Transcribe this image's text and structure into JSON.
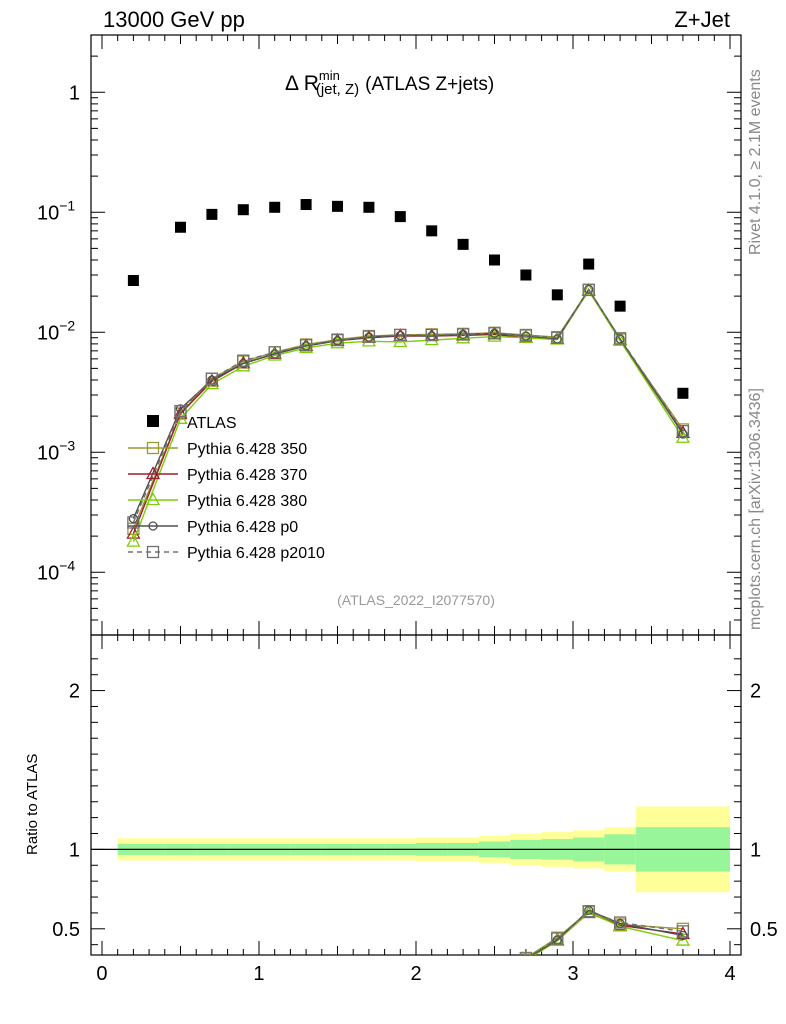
{
  "header": {
    "left": "13000 GeV pp",
    "right": "Z+Jet"
  },
  "side_labels": {
    "upper": "Rivet 4.1.0, ≥ 2.1M events",
    "lower": "mcplots.cern.ch [arXiv:1306.3436]"
  },
  "chart_data": {
    "type": "scatter",
    "title_parts": {
      "main": "Δ R",
      "sup": "min",
      "sub": "(jet, Z)",
      "tail": "(ATLAS Z+jets)"
    },
    "analysis_label": "(ATLAS_2022_I2077570)",
    "xlim": [
      -0.07,
      4.07
    ],
    "ylim_main": [
      3e-05,
      3
    ],
    "ylim_ratio": [
      0.335,
      2.35
    ],
    "x_ticks": [
      "0",
      "1",
      "2",
      "3",
      "4"
    ],
    "y_ticks_main": [
      {
        "base": "1",
        "exp": ""
      },
      {
        "base": "10",
        "exp": "−1"
      },
      {
        "base": "10",
        "exp": "−2"
      },
      {
        "base": "10",
        "exp": "−3"
      },
      {
        "base": "10",
        "exp": "−4"
      }
    ],
    "y_ticks_ratio": [
      "2",
      "1",
      "0.5"
    ],
    "ratio_ylabel": "Ratio to ATLAS",
    "x": [
      0.2,
      0.5,
      0.7,
      0.9,
      1.1,
      1.3,
      1.5,
      1.7,
      1.9,
      2.1,
      2.3,
      2.5,
      2.7,
      2.9,
      3.1,
      3.3,
      3.7
    ],
    "bin_edges": [
      0.1,
      0.4,
      0.6,
      0.8,
      1.0,
      1.2,
      1.4,
      1.6,
      1.8,
      2.0,
      2.2,
      2.4,
      2.6,
      2.8,
      3.0,
      3.2,
      3.4,
      4.0
    ],
    "data": {
      "name": "ATLAS",
      "values": [
        0.027,
        0.075,
        0.096,
        0.105,
        0.11,
        0.116,
        0.112,
        0.11,
        0.092,
        0.07,
        0.054,
        0.04,
        0.03,
        0.0205,
        0.037,
        0.0165,
        0.0031
      ],
      "band_inner": [
        0.035,
        0.035,
        0.035,
        0.035,
        0.035,
        0.035,
        0.035,
        0.035,
        0.035,
        0.04,
        0.04,
        0.05,
        0.06,
        0.065,
        0.075,
        0.095,
        0.14
      ],
      "band_outer": [
        0.07,
        0.07,
        0.07,
        0.07,
        0.07,
        0.07,
        0.07,
        0.07,
        0.07,
        0.075,
        0.075,
        0.085,
        0.1,
        0.11,
        0.12,
        0.14,
        0.27
      ]
    },
    "series": [
      {
        "name": "Pythia 6.428 350",
        "color": "#9a9a2e",
        "marker": "square-open",
        "dash": false,
        "values": [
          0.00023,
          0.0021,
          0.0041,
          0.0057,
          0.0068,
          0.0079,
          0.0087,
          0.0093,
          0.0095,
          0.0096,
          0.0097,
          0.0099,
          0.0095,
          0.0091,
          0.0225,
          0.0087,
          0.00155
        ]
      },
      {
        "name": "Pythia 6.428 370",
        "color": "#a01a2e",
        "marker": "triangle-open",
        "dash": false,
        "values": [
          0.00021,
          0.0021,
          0.0039,
          0.0055,
          0.0066,
          0.0077,
          0.0085,
          0.009,
          0.0093,
          0.0093,
          0.0094,
          0.0096,
          0.009,
          0.0088,
          0.0222,
          0.0086,
          0.00145
        ]
      },
      {
        "name": "Pythia 6.428 380",
        "color": "#7ccd0a",
        "marker": "triangle-open",
        "dash": false,
        "values": [
          0.00018,
          0.0019,
          0.0037,
          0.0052,
          0.0064,
          0.0074,
          0.0081,
          0.0084,
          0.0083,
          0.0086,
          0.0089,
          0.0092,
          0.009,
          0.0087,
          0.0223,
          0.0085,
          0.00132
        ]
      },
      {
        "name": "Pythia 6.428 p0",
        "color": "#505050",
        "marker": "circle-open",
        "dash": false,
        "values": [
          0.00028,
          0.0023,
          0.004,
          0.0055,
          0.0066,
          0.0077,
          0.0085,
          0.0091,
          0.0094,
          0.0093,
          0.0096,
          0.0098,
          0.0093,
          0.0088,
          0.0228,
          0.0088,
          0.00142
        ]
      },
      {
        "name": "Pythia 6.428 p2010",
        "color": "#707070",
        "marker": "square-open",
        "dash": true,
        "values": [
          0.00026,
          0.0022,
          0.0041,
          0.0058,
          0.0068,
          0.0078,
          0.0086,
          0.0092,
          0.0095,
          0.0095,
          0.0096,
          0.0098,
          0.0094,
          0.009,
          0.0226,
          0.0089,
          0.0015
        ]
      }
    ]
  }
}
